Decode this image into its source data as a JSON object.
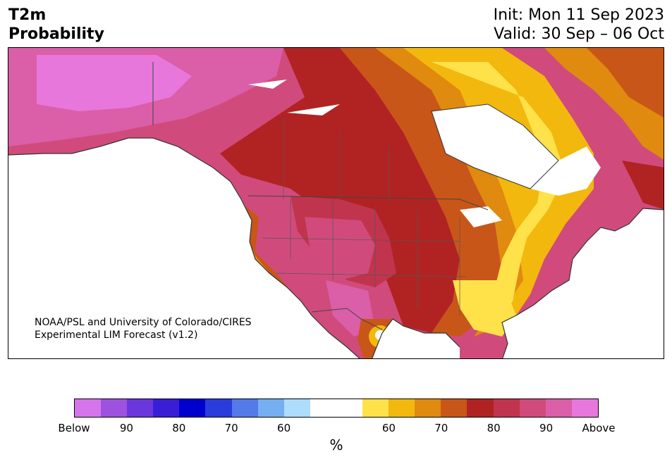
{
  "title": {
    "line1": "T2m",
    "line2": "Probability"
  },
  "subtitle": {
    "init": "Init: Mon 11 Sep 2023",
    "valid": "Valid: 30 Sep – 06 Oct"
  },
  "credit": {
    "line1": "NOAA/PSL and University of Colorado/CIRES",
    "line2": "Experimental LIM Forecast (v1.2)"
  },
  "colorbar": {
    "colors": [
      "#d674ec",
      "#9d52e0",
      "#6b36dc",
      "#3a1ed6",
      "#0000cc",
      "#2a3cdc",
      "#5479e8",
      "#76aef2",
      "#aedcfc",
      "#ffffff",
      "#ffffff",
      "#ffe14a",
      "#f3b80d",
      "#e08a0f",
      "#c85618",
      "#b12323",
      "#c1344d",
      "#d04b7c",
      "#db5ea8",
      "#e877dc"
    ],
    "tick_labels": [
      "Below",
      "90",
      "80",
      "70",
      "60",
      "60",
      "70",
      "80",
      "90",
      "Above"
    ],
    "unit": "%"
  },
  "map": {
    "region": "North America",
    "palette_above": [
      "#ffe14a",
      "#f3b80d",
      "#e08a0f",
      "#c85618",
      "#b12323",
      "#c1344d",
      "#d04b7c",
      "#db5ea8",
      "#e877dc"
    ]
  }
}
